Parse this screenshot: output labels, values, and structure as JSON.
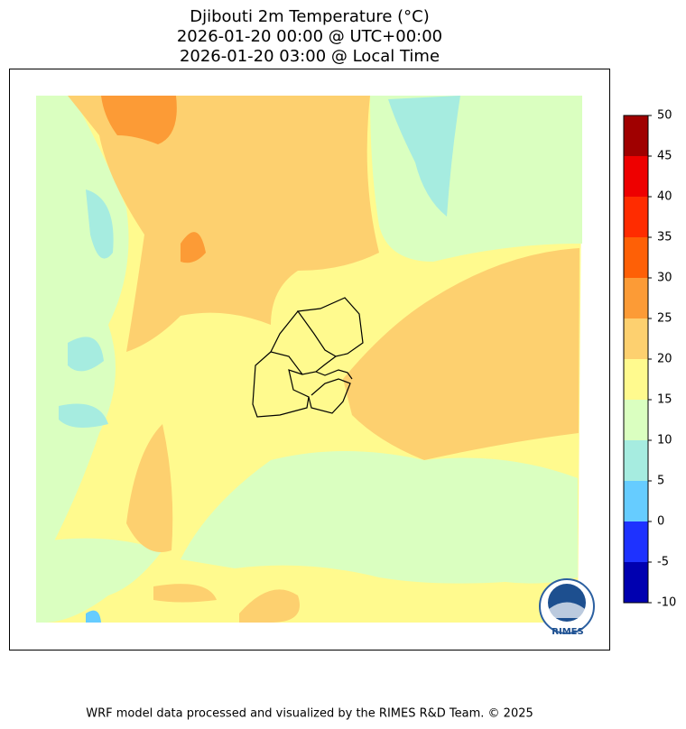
{
  "title": [
    "Djibouti 2m Temperature (°C)",
    "2026-01-20 00:00 @ UTC+00:00",
    "2026-01-20 03:00 @ Local Time"
  ],
  "colorbar": {
    "levels": [
      -10,
      -5,
      0,
      5,
      10,
      15,
      20,
      25,
      30,
      35,
      40,
      45,
      50
    ],
    "colors": [
      "#0000b0",
      "#1e32ff",
      "#66ccff",
      "#a6ece0",
      "#daffc0",
      "#fffa8e",
      "#fdd06f",
      "#fc9b36",
      "#fe6006",
      "#ff2c00",
      "#ee0000",
      "#a00000"
    ]
  },
  "logo": "RIMES",
  "footer": "WRF model data processed and visualized by the RIMES R&D Team. © 2025"
}
